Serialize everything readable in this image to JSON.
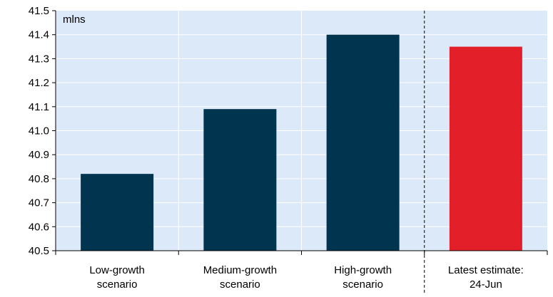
{
  "chart_data": {
    "type": "bar",
    "unit_label": "mlns",
    "categories": [
      [
        "Low-growth",
        "scenario"
      ],
      [
        "Medium-growth",
        "scenario"
      ],
      [
        "High-growth",
        "scenario"
      ],
      [
        "Latest estimate:",
        "24-Jun"
      ]
    ],
    "values": [
      40.82,
      41.09,
      41.4,
      41.35
    ],
    "bar_colors": [
      "#01344f",
      "#01344f",
      "#01344f",
      "#e3202a"
    ],
    "ylim": [
      40.5,
      41.5
    ],
    "yticks": [
      "40.5",
      "40.6",
      "40.7",
      "40.8",
      "40.9",
      "41.0",
      "41.1",
      "41.2",
      "41.3",
      "41.4",
      "41.5"
    ],
    "grid": true,
    "separator_before_category": 3,
    "background_color": "#dce9f8",
    "grid_color": "#ffffff"
  }
}
